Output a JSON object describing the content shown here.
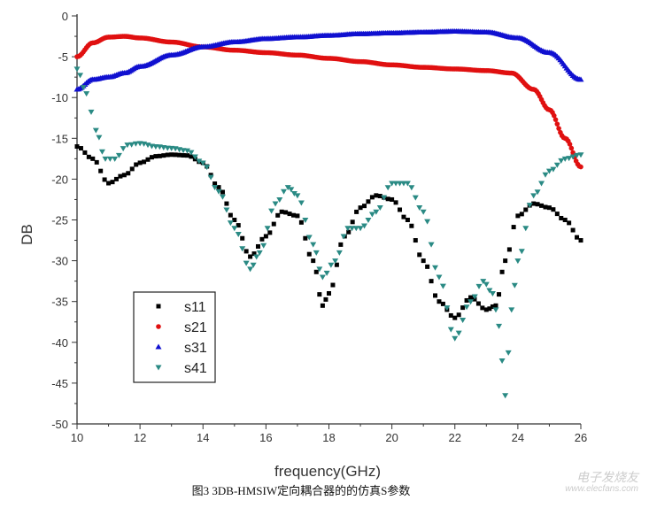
{
  "chart_data": {
    "type": "scatter",
    "xlabel": "frequency(GHz)",
    "ylabel": "DB",
    "xlim": [
      10,
      26
    ],
    "ylim": [
      -50,
      0
    ],
    "xticks": [
      10,
      12,
      14,
      16,
      18,
      20,
      22,
      24,
      26
    ],
    "yticks": [
      0,
      -5,
      -10,
      -15,
      -20,
      -25,
      -30,
      -35,
      -40,
      -45,
      -50
    ],
    "grid": false,
    "legend": "lower-left",
    "series": [
      {
        "name": "s11",
        "marker": "square",
        "color": "#000000",
        "x": [
          10,
          10.5,
          11,
          11.5,
          12,
          12.5,
          13,
          13.5,
          14,
          14.5,
          15,
          15.5,
          16,
          16.5,
          17,
          17.5,
          17.8,
          18,
          18.5,
          19,
          19.5,
          20,
          20.5,
          21,
          21.5,
          22,
          22.5,
          23,
          23.3,
          23.6,
          24,
          24.5,
          25,
          25.5,
          26
        ],
        "y": [
          -16,
          -17.5,
          -20.5,
          -19.5,
          -18,
          -17.2,
          -17,
          -17.1,
          -18,
          -21,
          -25,
          -29.5,
          -27,
          -24,
          -24.5,
          -30,
          -35.5,
          -34,
          -27,
          -23.5,
          -22,
          -22.5,
          -25,
          -30,
          -35,
          -37,
          -34.5,
          -36,
          -35.5,
          -30,
          -24.5,
          -23,
          -23.5,
          -25,
          -27.5
        ]
      },
      {
        "name": "s21",
        "marker": "circle",
        "color": "#e01010",
        "x": [
          10,
          10.5,
          11,
          11.5,
          12,
          13,
          14,
          15,
          16,
          17,
          18,
          19,
          20,
          21,
          22,
          23,
          23.8,
          24.5,
          25,
          25.5,
          26
        ],
        "y": [
          -5,
          -3.3,
          -2.6,
          -2.5,
          -2.7,
          -3.2,
          -3.8,
          -4.2,
          -4.5,
          -4.8,
          -5.2,
          -5.6,
          -6,
          -6.3,
          -6.5,
          -6.7,
          -7,
          -9,
          -11.5,
          -15,
          -18.5
        ]
      },
      {
        "name": "s31",
        "marker": "triangle-up",
        "color": "#1010d0",
        "x": [
          10,
          10.5,
          11,
          11.5,
          12,
          13,
          14,
          15,
          16,
          17,
          18,
          19,
          20,
          21,
          22,
          23,
          24,
          25,
          26
        ],
        "y": [
          -9,
          -7.8,
          -7.5,
          -7,
          -6.2,
          -4.8,
          -3.8,
          -3.2,
          -2.8,
          -2.6,
          -2.4,
          -2.2,
          -2.1,
          -2,
          -1.9,
          -2,
          -2.7,
          -4.5,
          -7.8
        ]
      },
      {
        "name": "s41",
        "marker": "triangle-down",
        "color": "#2a8a84",
        "x": [
          10,
          10.3,
          10.6,
          10.9,
          11.2,
          11.6,
          12,
          12.5,
          13,
          13.5,
          14,
          14.5,
          15,
          15.5,
          15.8,
          16.3,
          16.7,
          17,
          17.5,
          17.8,
          18.2,
          18.6,
          19,
          19.5,
          20,
          20.5,
          21,
          21.5,
          22,
          22.5,
          22.9,
          23.2,
          23.4,
          23.6,
          23.8,
          24,
          24.5,
          25,
          25.5,
          26
        ],
        "y": [
          -6.5,
          -9.5,
          -14,
          -17.5,
          -17.5,
          -15.8,
          -15.6,
          -16,
          -16.2,
          -16.5,
          -18,
          -21.5,
          -26,
          -31,
          -29,
          -23,
          -21,
          -22,
          -28,
          -32,
          -30,
          -26,
          -26,
          -24,
          -20.5,
          -20.5,
          -24,
          -32,
          -39.5,
          -35,
          -32.5,
          -34,
          -38,
          -46.5,
          -36,
          -30,
          -22,
          -19,
          -17.5,
          -17
        ]
      }
    ]
  },
  "caption": "图3 3DB-HMSIW定向耦合器的的仿真S参数",
  "watermark": {
    "logo": "电子发烧友",
    "url": "www.elecfans.com"
  }
}
